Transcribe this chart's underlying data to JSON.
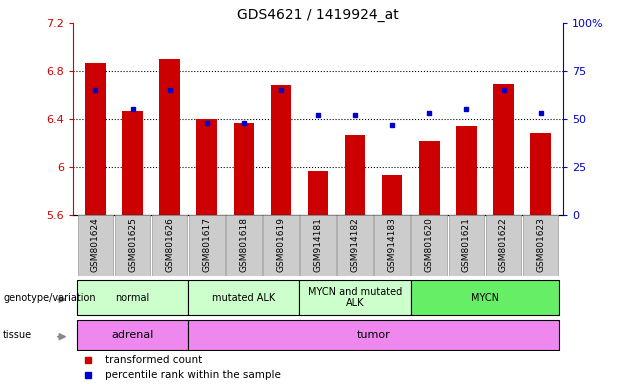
{
  "title": "GDS4621 / 1419924_at",
  "samples": [
    "GSM801624",
    "GSM801625",
    "GSM801626",
    "GSM801617",
    "GSM801618",
    "GSM801619",
    "GSM914181",
    "GSM914182",
    "GSM914183",
    "GSM801620",
    "GSM801621",
    "GSM801622",
    "GSM801623"
  ],
  "red_values": [
    6.87,
    6.47,
    6.9,
    6.4,
    6.37,
    6.68,
    5.97,
    6.27,
    5.93,
    6.22,
    6.34,
    6.69,
    6.28
  ],
  "blue_values": [
    65,
    55,
    65,
    48,
    48,
    65,
    52,
    52,
    47,
    53,
    55,
    65,
    53
  ],
  "ylim_left": [
    5.6,
    7.2
  ],
  "ylim_right": [
    0,
    100
  ],
  "yticks_left": [
    5.6,
    6.0,
    6.4,
    6.8,
    7.2
  ],
  "yticks_right": [
    0,
    25,
    50,
    75,
    100
  ],
  "ytick_labels_left": [
    "5.6",
    "6",
    "6.4",
    "6.8",
    "7.2"
  ],
  "ytick_labels_right": [
    "0",
    "25",
    "50",
    "75",
    "100%"
  ],
  "bar_bottom": 5.6,
  "bar_color": "#cc0000",
  "dot_color": "#0000cc",
  "genotype_groups": [
    {
      "label": "normal",
      "start": 0,
      "end": 3,
      "color": "#ccffcc"
    },
    {
      "label": "mutated ALK",
      "start": 3,
      "end": 6,
      "color": "#ccffcc"
    },
    {
      "label": "MYCN and mutated\nALK",
      "start": 6,
      "end": 9,
      "color": "#ccffcc"
    },
    {
      "label": "MYCN",
      "start": 9,
      "end": 13,
      "color": "#66ee66"
    }
  ],
  "tissue_groups": [
    {
      "label": "adrenal",
      "start": 0,
      "end": 3,
      "color": "#ee88ee"
    },
    {
      "label": "tumor",
      "start": 3,
      "end": 13,
      "color": "#ee88ee"
    }
  ],
  "legend_items": [
    {
      "label": "transformed count",
      "color": "#cc0000"
    },
    {
      "label": "percentile rank within the sample",
      "color": "#0000cc"
    }
  ],
  "left_axis_color": "#cc0000",
  "right_axis_color": "#0000cc",
  "grid_lines": [
    6.0,
    6.4,
    6.8
  ],
  "sample_box_color": "#cccccc",
  "sample_box_edge": "#999999"
}
